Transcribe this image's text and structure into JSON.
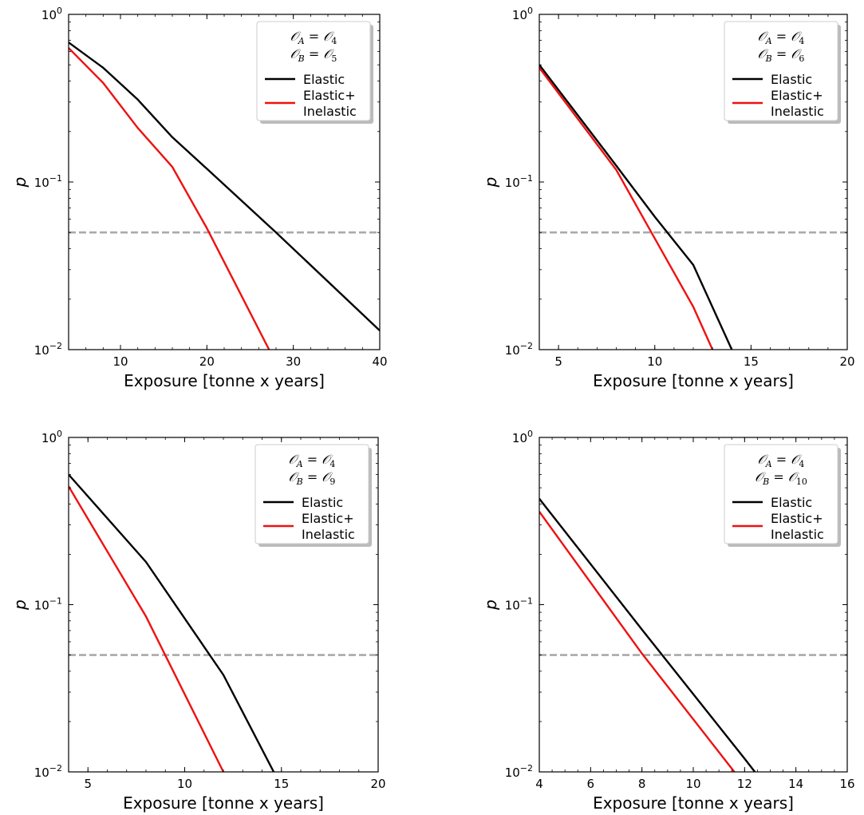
{
  "chart_data": [
    {
      "type": "line",
      "title": "",
      "xlabel": "Exposure [tonne x years]",
      "ylabel": "p",
      "yscale": "log",
      "xlim": [
        4,
        40
      ],
      "ylim": [
        0.01,
        1
      ],
      "xticks": [
        10,
        20,
        30,
        40
      ],
      "legend_position": "top-right",
      "legend_header": [
        "O_A = O_4",
        "O_B = O_5"
      ],
      "threshold": 0.05,
      "series": [
        {
          "name": "Elastic",
          "color": "#000000",
          "x": [
            4,
            8,
            12,
            16,
            20,
            28,
            40
          ],
          "y": [
            0.68,
            0.48,
            0.31,
            0.185,
            0.12,
            0.05,
            0.013
          ]
        },
        {
          "name": "Elastic+\nInelastic",
          "color": "#ee1111",
          "x": [
            4,
            8,
            12,
            16,
            20,
            27.2
          ],
          "y": [
            0.63,
            0.39,
            0.21,
            0.123,
            0.053,
            0.01
          ]
        }
      ]
    },
    {
      "type": "line",
      "title": "",
      "xlabel": "Exposure [tonne x years]",
      "ylabel": "p",
      "yscale": "log",
      "xlim": [
        4,
        20
      ],
      "ylim": [
        0.01,
        1
      ],
      "xticks": [
        5,
        10,
        15,
        20
      ],
      "legend_position": "top-right",
      "legend_header": [
        "O_A = O_4",
        "O_B = O_6"
      ],
      "threshold": 0.05,
      "series": [
        {
          "name": "Elastic",
          "color": "#000000",
          "x": [
            4,
            8,
            10,
            12,
            14
          ],
          "y": [
            0.5,
            0.125,
            0.062,
            0.032,
            0.01
          ]
        },
        {
          "name": "Elastic+\nInelastic",
          "color": "#ee1111",
          "x": [
            4,
            8,
            10,
            12,
            13
          ],
          "y": [
            0.48,
            0.118,
            0.046,
            0.018,
            0.01
          ]
        }
      ]
    },
    {
      "type": "line",
      "title": "",
      "xlabel": "Exposure [tonne x years]",
      "ylabel": "p",
      "yscale": "log",
      "xlim": [
        4,
        20
      ],
      "ylim": [
        0.01,
        1
      ],
      "xticks": [
        5,
        10,
        15,
        20
      ],
      "legend_position": "top-right",
      "legend_header": [
        "O_A = O_4",
        "O_B = O_9"
      ],
      "threshold": 0.05,
      "series": [
        {
          "name": "Elastic",
          "color": "#000000",
          "x": [
            4,
            8,
            12,
            14.6
          ],
          "y": [
            0.6,
            0.18,
            0.038,
            0.01
          ]
        },
        {
          "name": "Elastic+\nInelastic",
          "color": "#ee1111",
          "x": [
            4,
            8,
            12
          ],
          "y": [
            0.51,
            0.085,
            0.01
          ]
        }
      ]
    },
    {
      "type": "line",
      "title": "",
      "xlabel": "Exposure [tonne x years]",
      "ylabel": "p",
      "yscale": "log",
      "xlim": [
        4,
        16
      ],
      "ylim": [
        0.01,
        1
      ],
      "xticks": [
        4,
        6,
        8,
        10,
        12,
        14,
        16
      ],
      "legend_position": "top-right",
      "legend_header": [
        "O_A = O_4",
        "O_B = O_10"
      ],
      "threshold": 0.05,
      "series": [
        {
          "name": "Elastic",
          "color": "#000000",
          "x": [
            4,
            8,
            12,
            12.4
          ],
          "y": [
            0.43,
            0.071,
            0.012,
            0.01
          ]
        },
        {
          "name": "Elastic+\nInelastic",
          "color": "#ee1111",
          "x": [
            4,
            8,
            11.6
          ],
          "y": [
            0.36,
            0.051,
            0.01
          ]
        }
      ]
    }
  ],
  "colors": {
    "threshold": "#aaaaaa",
    "legend_border": "#cccccc"
  }
}
